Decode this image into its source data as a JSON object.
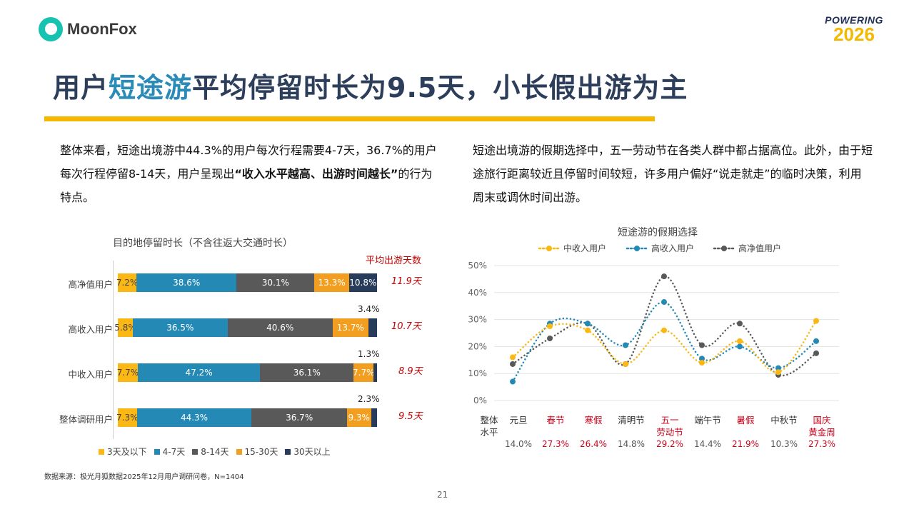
{
  "header": {
    "logo_text": "MoonFox",
    "brand_top": "POWERING",
    "brand_year": "2026"
  },
  "title": {
    "part1": "用户",
    "highlight": "短途游",
    "part2": "平均停留时长为9.5天，小长假出游为主"
  },
  "left_text": {
    "a": "整体来看，短途出境游中44.3%的用户每次行程需要4-7天，36.7%的用户每次行程停留8-14天，用户呈现出",
    "bold": "“收入水平越高、出游时间越长”",
    "b": "的行为特点。"
  },
  "right_text": "短途出境游的假期选择中，五一劳动节在各类人群中都占据高位。此外，由于短途旅行距离较近且停留时间较短，许多用户偏好“说走就走”的临时决策，利用周末或调休时间出游。",
  "chart_data": [
    {
      "type": "bar",
      "stacked": true,
      "orientation": "horizontal",
      "title": "目的地停留时长（不含往返大交通时长）",
      "avg_header": "平均出游天数",
      "categories": [
        "高净值用户",
        "高收入用户",
        "中收入用户",
        "整体调研用户"
      ],
      "series": [
        {
          "name": "3天及以下",
          "color": "#fbb714",
          "values": [
            7.2,
            5.8,
            7.7,
            7.3
          ]
        },
        {
          "name": "4-7天",
          "color": "#2589b6",
          "values": [
            38.6,
            36.5,
            47.2,
            44.3
          ]
        },
        {
          "name": "8-14天",
          "color": "#595959",
          "values": [
            30.1,
            40.6,
            36.1,
            36.7
          ]
        },
        {
          "name": "15-30天",
          "color": "#f29f21",
          "values": [
            13.3,
            13.7,
            7.7,
            9.3
          ]
        },
        {
          "name": "30天以上",
          "color": "#263c5a",
          "values": [
            10.8,
            3.4,
            1.3,
            2.3
          ]
        }
      ],
      "avg_days": [
        "11.9天",
        "10.7天",
        "8.9天",
        "9.5天"
      ]
    },
    {
      "type": "line",
      "title": "短途游的假期选择",
      "categories": [
        "元旦",
        "春节",
        "寒假",
        "清明节",
        "五一劳动节",
        "端午节",
        "暑假",
        "中秋节",
        "国庆黄金周"
      ],
      "category_lines": [
        [
          "元旦"
        ],
        [
          "春节"
        ],
        [
          "寒假"
        ],
        [
          "清明节"
        ],
        [
          "五一",
          "劳动节"
        ],
        [
          "端午节"
        ],
        [
          "暑假"
        ],
        [
          "中秋节"
        ],
        [
          "国庆",
          "黄金周"
        ]
      ],
      "highlighted": [
        false,
        true,
        true,
        false,
        true,
        false,
        true,
        false,
        true
      ],
      "overall_label": [
        "整体",
        "水平"
      ],
      "overall": [
        "14.0%",
        "27.3%",
        "26.4%",
        "14.8%",
        "29.2%",
        "14.4%",
        "21.9%",
        "10.3%",
        "27.3%"
      ],
      "yticks": [
        "0%",
        "10%",
        "20%",
        "30%",
        "40%",
        "50%"
      ],
      "ylim": [
        0,
        50
      ],
      "series": [
        {
          "name": "中收入用户",
          "color": "#fbb714",
          "values": [
            16,
            27.5,
            26,
            13.5,
            26,
            14,
            22,
            10.5,
            29.5
          ]
        },
        {
          "name": "高收入用户",
          "color": "#2589b6",
          "values": [
            7,
            28.5,
            28.5,
            20.5,
            36.5,
            15.5,
            20,
            12,
            22
          ]
        },
        {
          "name": "高净值用户",
          "color": "#595959",
          "values": [
            13.5,
            23,
            28.5,
            13.5,
            46,
            20.5,
            28.5,
            9.5,
            17.5
          ]
        }
      ]
    }
  ],
  "source": "数据来源：极光月狐数据2025年12月用户调研问卷，N=1404",
  "page_number": "21"
}
